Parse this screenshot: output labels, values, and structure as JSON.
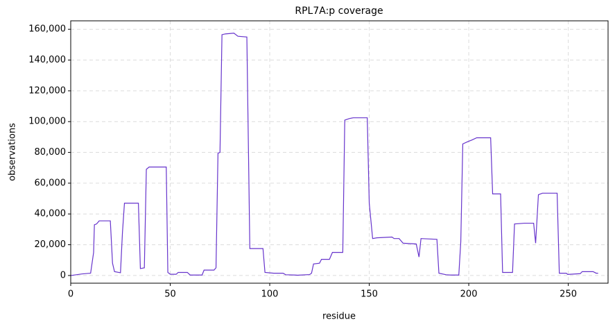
{
  "chart_data": {
    "type": "line",
    "title": "RPL7A:p coverage",
    "x_label": "residue",
    "y_label": "observations",
    "x": [
      0,
      5.6,
      10,
      11.5,
      11.9,
      13,
      14.3,
      19.9,
      21,
      22,
      25,
      26,
      27,
      34,
      35,
      37,
      38,
      39.4,
      48,
      48.8,
      50,
      53,
      54,
      58.6,
      60,
      66,
      67,
      72,
      73,
      74,
      75,
      76,
      77.7,
      82,
      84,
      88.5,
      90,
      96.6,
      97.6,
      102,
      106.7,
      108,
      112.6,
      114,
      120,
      121,
      122,
      125,
      126,
      130,
      131.5,
      136.7,
      137.7,
      140,
      142,
      149,
      150,
      151.7,
      153.8,
      161.4,
      162.5,
      165,
      167,
      173.6,
      175,
      176,
      184,
      185,
      188.6,
      190.7,
      195,
      196,
      197,
      199.5,
      201.5,
      204,
      211,
      212,
      216,
      217,
      222,
      223,
      228,
      232.6,
      233.6,
      235,
      237,
      244.4,
      245.5,
      249,
      249.7,
      256,
      257,
      262.5,
      264,
      265
    ],
    "series": [
      {
        "name": "coverage",
        "color": "#6633cc",
        "values": [
          0,
          1000,
          1500,
          15000,
          33000,
          33500,
          35500,
          35500,
          8000,
          2500,
          1800,
          28000,
          47000,
          47000,
          4500,
          5000,
          69000,
          70500,
          70500,
          2000,
          800,
          800,
          2000,
          2000,
          300,
          300,
          3500,
          3500,
          5000,
          79500,
          80000,
          156500,
          157000,
          157500,
          155500,
          155000,
          17500,
          17500,
          2000,
          1500,
          1500,
          500,
          300,
          200,
          600,
          1500,
          7500,
          8000,
          10500,
          10500,
          15000,
          15000,
          101000,
          102000,
          102500,
          102500,
          47000,
          24000,
          24500,
          25000,
          24000,
          24000,
          21000,
          20500,
          12000,
          24000,
          23500,
          1500,
          500,
          300,
          300,
          22000,
          85500,
          87000,
          88000,
          89500,
          89500,
          53000,
          53000,
          2000,
          2000,
          33500,
          34000,
          34000,
          21000,
          52500,
          53500,
          53500,
          1500,
          1500,
          700,
          1200,
          2500,
          2500,
          1500,
          1500
        ]
      }
    ],
    "xlim": [
      0,
      270
    ],
    "xticks": [
      0,
      50,
      100,
      150,
      200,
      250
    ],
    "ylim": [
      -5000,
      165500
    ],
    "yticks": [
      0,
      {
        "value": 20000,
        "label": "20,000"
      },
      {
        "value": 40000,
        "label": "40,000"
      },
      {
        "value": 60000,
        "label": "60,000"
      },
      {
        "value": 80000,
        "label": "80,000"
      },
      {
        "value": 100000,
        "label": "100,000"
      },
      {
        "value": 120000,
        "label": "120,000"
      },
      {
        "value": 140000,
        "label": "140,000"
      },
      {
        "value": 160000,
        "label": "160,000"
      }
    ],
    "grid": true
  }
}
